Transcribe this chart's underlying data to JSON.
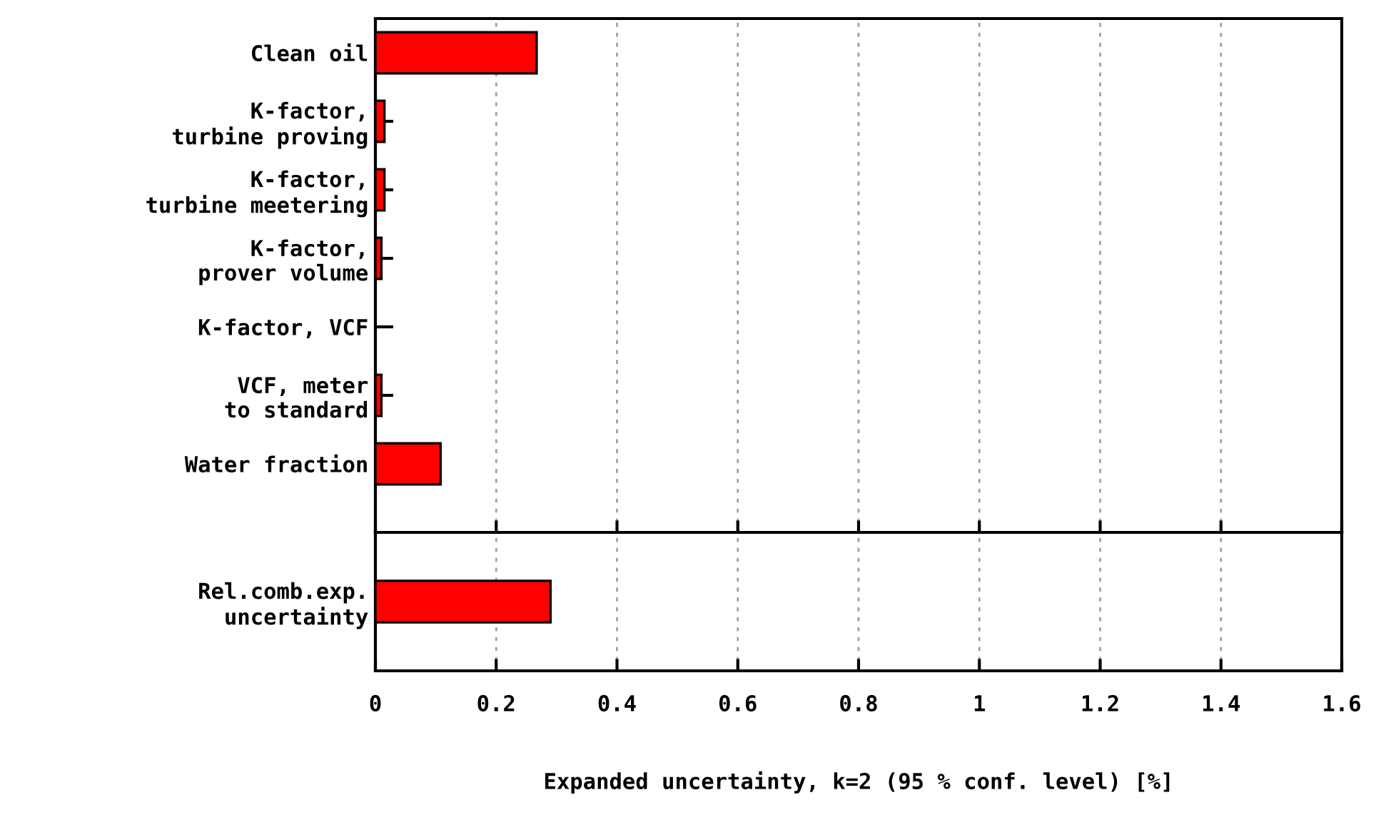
{
  "chart_data": [
    {
      "type": "bar",
      "orientation": "horizontal",
      "categories": [
        "Clean oil",
        "K-factor,\nturbine proving",
        "K-factor,\nturbine meetering",
        "K-factor,\nprover volume",
        "K-factor, VCF",
        "VCF, meter\nto standard",
        "Water fraction"
      ],
      "values": [
        0.267,
        0.015,
        0.015,
        0.01,
        0,
        0.01,
        0.108
      ],
      "color": "#ff0000",
      "xlim": [
        0,
        1.6
      ],
      "xticks": [
        0,
        0.2,
        0.4,
        0.6,
        0.8,
        1,
        1.2,
        1.4,
        1.6
      ],
      "grid": "x",
      "tick_labels": "y"
    },
    {
      "type": "bar",
      "orientation": "horizontal",
      "categories": [
        "Rel.comb.exp.\nuncertainty"
      ],
      "values": [
        0.29
      ],
      "color": "#ff0000",
      "xlim": [
        0,
        1.6
      ],
      "xticks": [
        0,
        0.2,
        0.4,
        0.6,
        0.8,
        1,
        1.2,
        1.4,
        1.6
      ],
      "grid": "x",
      "xlabel": "Expanded uncertainty, k=2 (95 % conf. level) [%]"
    }
  ]
}
